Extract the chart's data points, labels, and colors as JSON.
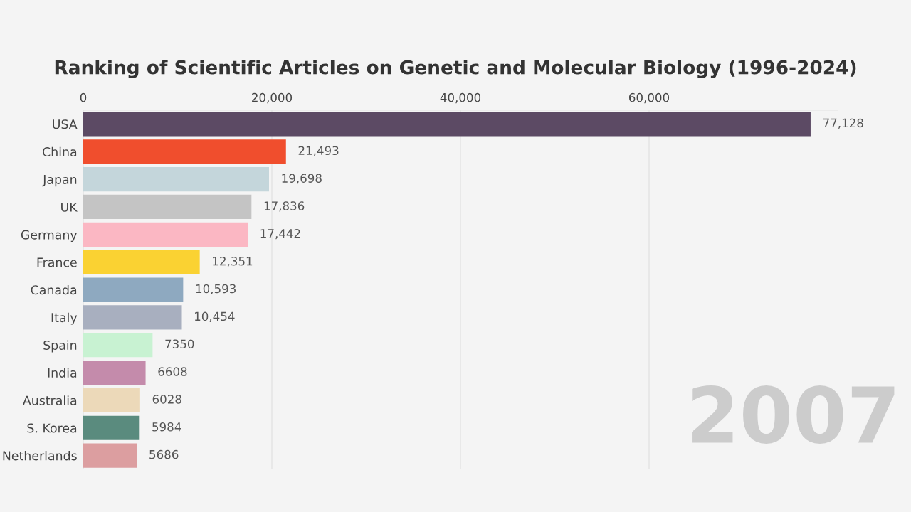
{
  "chart_data": {
    "type": "bar",
    "orientation": "horizontal",
    "title": "Ranking of Scientific Articles on Genetic and Molecular Biology (1996-2024)",
    "categories": [
      "USA",
      "China",
      "Japan",
      "UK",
      "Germany",
      "France",
      "Canada",
      "Italy",
      "Spain",
      "India",
      "Australia",
      "S. Korea",
      "Netherlands"
    ],
    "values": [
      77128,
      21493,
      19698,
      17836,
      17442,
      12351,
      10593,
      10454,
      7350,
      6608,
      6028,
      5984,
      5686
    ],
    "value_labels": [
      "77,128",
      "21,493",
      "19,698",
      "17,836",
      "17,442",
      "12,351",
      "10,593",
      "10,454",
      "7350",
      "6608",
      "6028",
      "5984",
      "5686"
    ],
    "colors": [
      "#5c4a64",
      "#f04e2d",
      "#c4d6db",
      "#c4c4c4",
      "#fbb7c3",
      "#fad232",
      "#8ea9c0",
      "#a8afbf",
      "#c8f2d2",
      "#c48bab",
      "#ecd9b9",
      "#5a8b7e",
      "#dc9ea0"
    ],
    "xlim": [
      0,
      80000
    ],
    "xticks": [
      0,
      {
        "value": 20000,
        "label": "20,000"
      },
      {
        "value": 40000,
        "label": "40,000"
      },
      {
        "value": 60000,
        "label": "60,000"
      }
    ],
    "grid": "x",
    "legend": false,
    "annotations": [
      "2007"
    ]
  }
}
